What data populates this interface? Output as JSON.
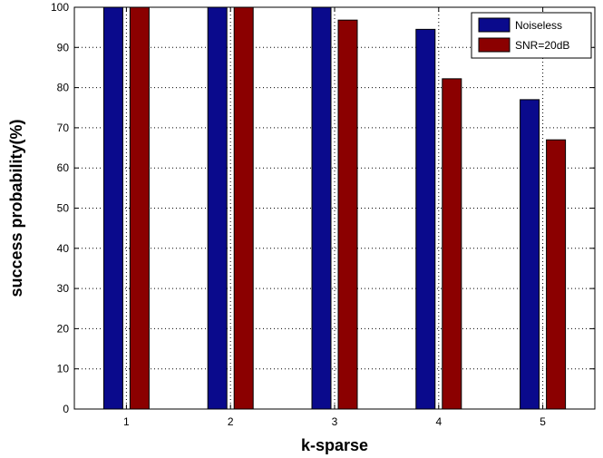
{
  "chart_data": {
    "type": "bar",
    "categories": [
      "1",
      "2",
      "3",
      "4",
      "5"
    ],
    "series": [
      {
        "name": "Noiseless",
        "color": "#0a0a8c",
        "values": [
          100,
          100,
          100,
          94.5,
          77
        ]
      },
      {
        "name": "SNR=20dB",
        "color": "#8b0000",
        "values": [
          100,
          100,
          96.8,
          82.2,
          67
        ]
      }
    ],
    "title": "",
    "xlabel": "k-sparse",
    "ylabel": "success probability(%)",
    "ylim": [
      0,
      100
    ],
    "yticks": [
      "0",
      "10",
      "20",
      "30",
      "40",
      "50",
      "60",
      "70",
      "80",
      "90",
      "100"
    ],
    "grid": true,
    "legend_position": "top-right"
  }
}
